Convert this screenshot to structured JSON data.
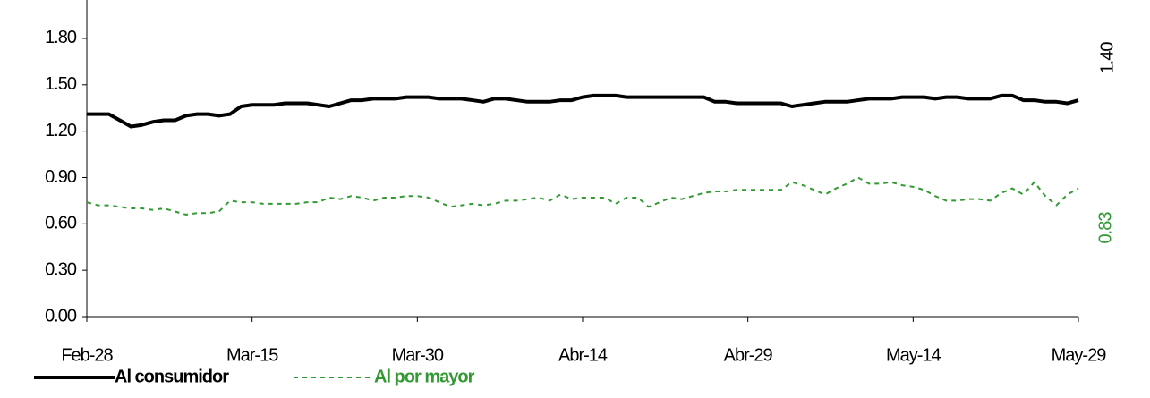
{
  "chart_data": {
    "type": "line",
    "categories": [
      "Feb-28",
      null,
      null,
      null,
      null,
      null,
      null,
      null,
      null,
      null,
      null,
      null,
      null,
      null,
      null,
      "Mar-15",
      null,
      null,
      null,
      null,
      null,
      null,
      null,
      null,
      null,
      null,
      null,
      null,
      null,
      null,
      "Mar-30",
      null,
      null,
      null,
      null,
      null,
      null,
      null,
      null,
      null,
      null,
      null,
      null,
      null,
      null,
      "Abr-14",
      null,
      null,
      null,
      null,
      null,
      null,
      null,
      null,
      null,
      null,
      null,
      null,
      null,
      null,
      "Abr-29",
      null,
      null,
      null,
      null,
      null,
      null,
      null,
      null,
      null,
      null,
      null,
      null,
      null,
      null,
      "May-14",
      null,
      null,
      null,
      null,
      null,
      null,
      null,
      null,
      null,
      null,
      null,
      null,
      null,
      null,
      "May-29"
    ],
    "series": [
      {
        "name": "Al consumidor",
        "color": "#000000",
        "dashed": false,
        "end_label": "1.40",
        "values": [
          1.31,
          1.31,
          1.31,
          1.27,
          1.23,
          1.24,
          1.26,
          1.27,
          1.27,
          1.3,
          1.31,
          1.31,
          1.3,
          1.31,
          1.36,
          1.37,
          1.37,
          1.37,
          1.38,
          1.38,
          1.38,
          1.37,
          1.36,
          1.38,
          1.4,
          1.4,
          1.41,
          1.41,
          1.41,
          1.42,
          1.42,
          1.42,
          1.41,
          1.41,
          1.41,
          1.4,
          1.39,
          1.41,
          1.41,
          1.4,
          1.39,
          1.39,
          1.39,
          1.4,
          1.4,
          1.42,
          1.43,
          1.43,
          1.43,
          1.42,
          1.42,
          1.42,
          1.42,
          1.42,
          1.42,
          1.42,
          1.42,
          1.39,
          1.39,
          1.38,
          1.38,
          1.38,
          1.38,
          1.38,
          1.36,
          1.37,
          1.38,
          1.39,
          1.39,
          1.39,
          1.4,
          1.41,
          1.41,
          1.41,
          1.42,
          1.42,
          1.42,
          1.41,
          1.42,
          1.42,
          1.41,
          1.41,
          1.41,
          1.43,
          1.43,
          1.4,
          1.4,
          1.39,
          1.39,
          1.38,
          1.4
        ]
      },
      {
        "name": "Al por mayor",
        "color": "#339933",
        "dashed": true,
        "end_label": "0.83",
        "values": [
          0.74,
          0.72,
          0.72,
          0.71,
          0.7,
          0.7,
          0.69,
          0.7,
          0.68,
          0.66,
          0.67,
          0.67,
          0.68,
          0.75,
          0.74,
          0.74,
          0.73,
          0.73,
          0.73,
          0.73,
          0.74,
          0.74,
          0.77,
          0.76,
          0.78,
          0.77,
          0.75,
          0.77,
          0.77,
          0.78,
          0.78,
          0.77,
          0.74,
          0.71,
          0.72,
          0.73,
          0.72,
          0.73,
          0.75,
          0.75,
          0.76,
          0.77,
          0.75,
          0.79,
          0.76,
          0.77,
          0.77,
          0.77,
          0.73,
          0.77,
          0.77,
          0.71,
          0.74,
          0.77,
          0.76,
          0.78,
          0.8,
          0.81,
          0.81,
          0.82,
          0.82,
          0.82,
          0.82,
          0.82,
          0.87,
          0.85,
          0.82,
          0.79,
          0.83,
          0.86,
          0.9,
          0.86,
          0.86,
          0.87,
          0.85,
          0.84,
          0.82,
          0.78,
          0.75,
          0.75,
          0.76,
          0.76,
          0.75,
          0.8,
          0.83,
          0.79,
          0.87,
          0.78,
          0.72,
          0.79,
          0.83
        ]
      }
    ],
    "ylim": [
      0,
      2.0
    ],
    "yticks": [
      {
        "value": 0,
        "label": "0.00"
      },
      {
        "value": 0.3,
        "label": "0.30"
      },
      {
        "value": 0.6,
        "label": "0.60"
      },
      {
        "value": 0.9,
        "label": "0.90"
      },
      {
        "value": 1.2,
        "label": "1.20"
      },
      {
        "value": 1.5,
        "label": "1.50"
      },
      {
        "value": 1.8,
        "label": "1.80"
      }
    ],
    "grid": false
  }
}
